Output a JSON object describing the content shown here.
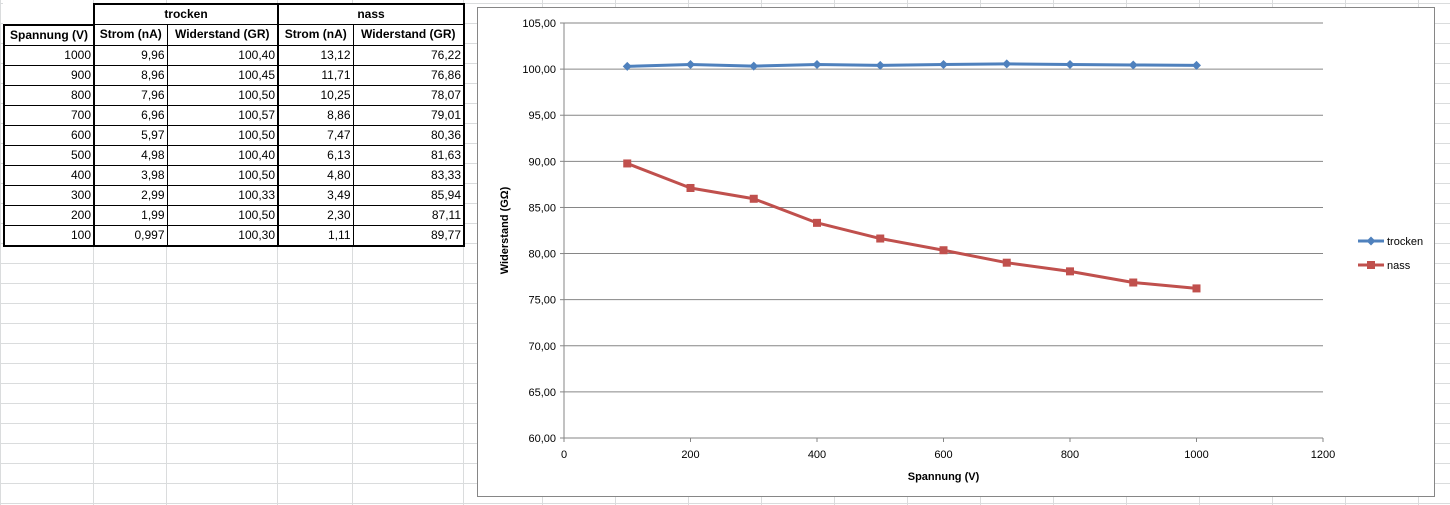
{
  "table": {
    "group_headers": [
      "trocken",
      "nass"
    ],
    "columns": [
      "Spannung (V)",
      "Strom (nA)",
      "Widerstand (GR)",
      "Strom (nA)",
      "Widerstand (GR)"
    ],
    "rows": [
      [
        "1000",
        "9,96",
        "100,40",
        "13,12",
        "76,22"
      ],
      [
        "900",
        "8,96",
        "100,45",
        "11,71",
        "76,86"
      ],
      [
        "800",
        "7,96",
        "100,50",
        "10,25",
        "78,07"
      ],
      [
        "700",
        "6,96",
        "100,57",
        "8,86",
        "79,01"
      ],
      [
        "600",
        "5,97",
        "100,50",
        "7,47",
        "80,36"
      ],
      [
        "500",
        "4,98",
        "100,40",
        "6,13",
        "81,63"
      ],
      [
        "400",
        "3,98",
        "100,50",
        "4,80",
        "83,33"
      ],
      [
        "300",
        "2,99",
        "100,33",
        "3,49",
        "85,94"
      ],
      [
        "200",
        "1,99",
        "100,50",
        "2,30",
        "87,11"
      ],
      [
        "100",
        "0,997",
        "100,30",
        "1,11",
        "89,77"
      ]
    ]
  },
  "chart_data": {
    "type": "line",
    "title": "",
    "xlabel": "Spannung  (V)",
    "ylabel": "Widerstand  (GΩ)",
    "xlim": [
      0,
      1200
    ],
    "ylim": [
      60,
      105
    ],
    "x_ticks": [
      0,
      200,
      400,
      600,
      800,
      1000,
      1200
    ],
    "x_tick_labels": [
      "0",
      "200",
      "400",
      "600",
      "800",
      "1000",
      "1200"
    ],
    "y_ticks": [
      60,
      65,
      70,
      75,
      80,
      85,
      90,
      95,
      100,
      105
    ],
    "y_tick_labels": [
      "60,00",
      "65,00",
      "70,00",
      "75,00",
      "80,00",
      "85,00",
      "90,00",
      "95,00",
      "100,00",
      "105,00"
    ],
    "grid": "horizontal",
    "legend_position": "right",
    "x": [
      1000,
      900,
      800,
      700,
      600,
      500,
      400,
      300,
      200,
      100
    ],
    "series": [
      {
        "name": "trocken",
        "color": "#4f81bd",
        "marker": "diamond",
        "values": [
          100.4,
          100.45,
          100.5,
          100.57,
          100.5,
          100.4,
          100.5,
          100.33,
          100.5,
          100.3
        ]
      },
      {
        "name": "nass",
        "color": "#c0504d",
        "marker": "square",
        "values": [
          76.22,
          76.86,
          78.07,
          79.01,
          80.36,
          81.63,
          83.33,
          85.94,
          87.11,
          89.77
        ]
      }
    ]
  }
}
